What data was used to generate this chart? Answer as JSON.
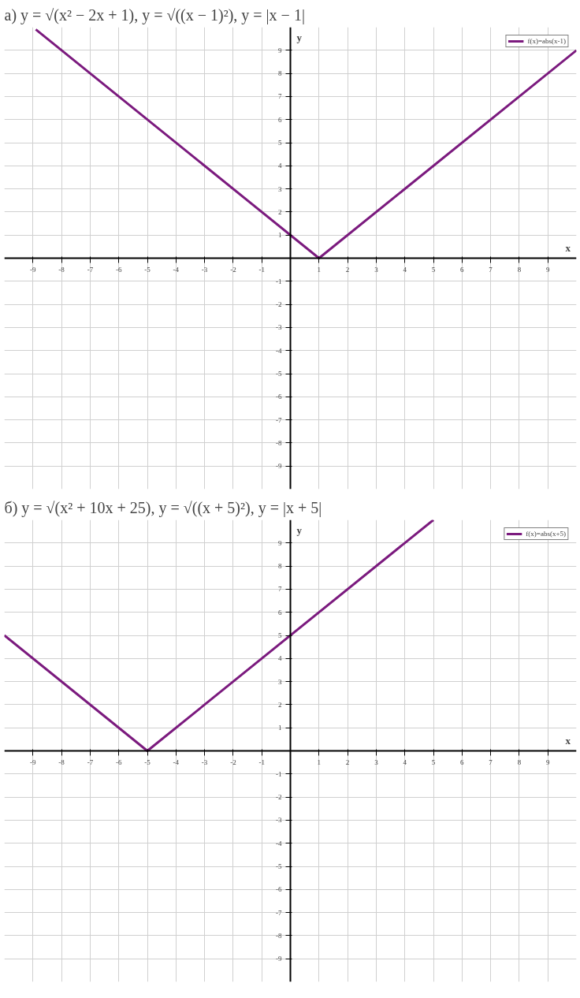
{
  "chart_data": [
    {
      "type": "line",
      "title": "а) y = √(x² − 2x + 1),   y = √((x − 1)²),   y = |x − 1|",
      "xlabel": "x",
      "ylabel": "y",
      "series": [
        {
          "name": "f(x)=abs(x-1)",
          "color": "#7b1a7e",
          "x": [
            -8.9,
            1,
            10
          ],
          "values": [
            9.9,
            0,
            9
          ]
        }
      ],
      "xlim": [
        -10,
        10
      ],
      "ylim": [
        -10,
        10
      ],
      "xticks": [
        -9,
        -8,
        -7,
        -6,
        -5,
        -4,
        -3,
        -2,
        -1,
        {
          "value": 0,
          "label": null
        },
        1,
        2,
        3,
        4,
        5,
        6,
        7,
        8,
        9
      ],
      "yticks": [
        -9,
        -8,
        -7,
        -6,
        -5,
        -4,
        -3,
        -2,
        -1,
        {
          "value": 0,
          "label": null
        },
        1,
        2,
        3,
        4,
        5,
        6,
        7,
        8,
        9
      ],
      "grid": true,
      "legend": "top right"
    },
    {
      "type": "line",
      "title": "б) y = √(x² + 10x + 25),   y = √((x + 5)²),   y = |x + 5|",
      "xlabel": "x",
      "ylabel": "y",
      "series": [
        {
          "name": "f(x)=abs(x+5)",
          "color": "#7b1a7e",
          "x": [
            -10,
            -5,
            5
          ],
          "values": [
            5,
            0,
            10
          ]
        }
      ],
      "xlim": [
        -10,
        10
      ],
      "ylim": [
        -10,
        10
      ],
      "xticks": [
        -9,
        -8,
        -7,
        -6,
        -5,
        -4,
        -3,
        -2,
        -1,
        {
          "value": 0,
          "label": null
        },
        1,
        2,
        3,
        4,
        5,
        6,
        7,
        8,
        9
      ],
      "yticks": [
        -9,
        -8,
        -7,
        -6,
        -5,
        -4,
        -3,
        -2,
        -1,
        {
          "value": 0,
          "label": null
        },
        1,
        2,
        3,
        4,
        5,
        6,
        7,
        8,
        9
      ],
      "grid": true,
      "legend": "top right"
    }
  ]
}
